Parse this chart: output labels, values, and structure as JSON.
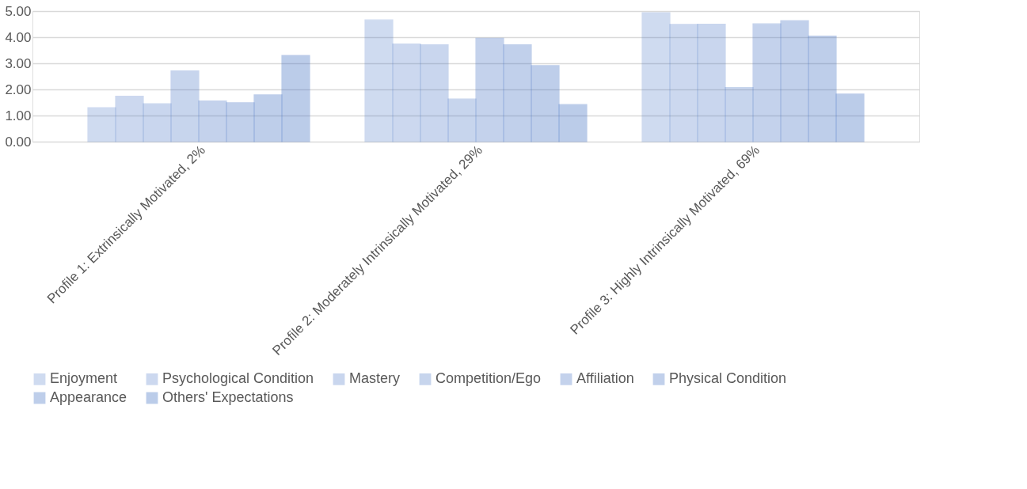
{
  "chart_data": {
    "type": "bar",
    "categories": [
      "Profile 1: Extrinsically Motivated, 2%",
      "Profile 2: Moderately Intrinsically Motivated, 29%",
      "Profile 3: Highly Intrinsically Motivated, 69%"
    ],
    "series": [
      {
        "name": "Enjoyment",
        "color": "#4472c4",
        "values": [
          1.3,
          4.66,
          4.94
        ]
      },
      {
        "name": "Psychological Condition",
        "color": "#4472c4",
        "values": [
          1.74,
          3.74,
          4.49
        ]
      },
      {
        "name": "Mastery",
        "color": "#4472c4",
        "values": [
          1.45,
          3.71,
          4.5
        ]
      },
      {
        "name": "Competition/Ego",
        "color": "#4472c4",
        "values": [
          2.71,
          1.63,
          2.07
        ]
      },
      {
        "name": "Affiliation",
        "color": "#4472c4",
        "values": [
          1.56,
          3.96,
          4.51
        ]
      },
      {
        "name": "Physical Condition",
        "color": "#4472c4",
        "values": [
          1.49,
          3.71,
          4.63
        ]
      },
      {
        "name": "Appearance",
        "color": "#4472c4",
        "values": [
          1.79,
          2.91,
          4.04
        ]
      },
      {
        "name": "Others' Expectations",
        "color": "#4472c4",
        "values": [
          3.3,
          1.42,
          1.82
        ]
      }
    ],
    "ylim": [
      0,
      5
    ],
    "yticks": [
      {
        "value": 0,
        "label": "0.00"
      },
      {
        "value": 1,
        "label": "1.00"
      },
      {
        "value": 2,
        "label": "2.00"
      },
      {
        "value": 3,
        "label": "3.00"
      },
      {
        "value": 4,
        "label": "4.00"
      },
      {
        "value": 5,
        "label": "5.00"
      }
    ],
    "grid": "y",
    "legend": "bottom"
  }
}
